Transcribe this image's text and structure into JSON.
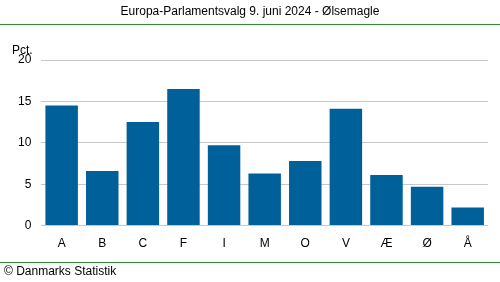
{
  "chart_data": {
    "type": "bar",
    "title": "Europa-Parlamentsvalg 9. juni 2024 - Ølsemagle",
    "y_label": "Pct.",
    "footnote": "© Danmarks Statistik",
    "categories": [
      "A",
      "B",
      "C",
      "F",
      "I",
      "M",
      "O",
      "V",
      "Æ",
      "Ø",
      "Å"
    ],
    "values": [
      14.5,
      6.6,
      12.5,
      16.5,
      9.7,
      6.3,
      7.8,
      14.1,
      6.1,
      4.7,
      2.2
    ],
    "color": "#00609a",
    "ylim": [
      0,
      20
    ],
    "yticks": [
      0,
      5,
      10,
      15,
      20
    ],
    "grid": true
  }
}
